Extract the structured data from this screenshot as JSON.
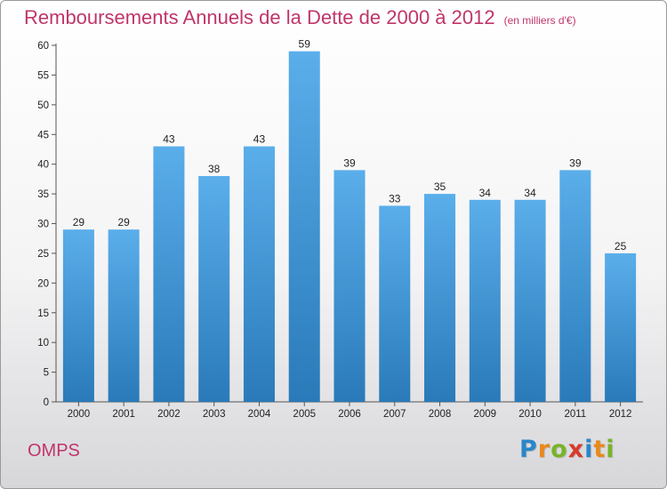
{
  "header": {
    "title": "Remboursements Annuels de la Dette de 2000 à 2012",
    "subtitle": "(en milliers d'€)"
  },
  "footer": {
    "commune": "OMPS",
    "logo": [
      "P",
      "r",
      "o",
      "x",
      "i",
      "t",
      "i"
    ]
  },
  "colors": {
    "title": "#c0356a",
    "bar_top": "#5aaeea",
    "bar_bottom": "#2a7ab9",
    "logo": [
      "#2a86c8",
      "#e8891c",
      "#79b32a",
      "#d83a2a",
      "#2a86c8",
      "#e8891c",
      "#79b32a"
    ]
  },
  "chart_data": {
    "type": "bar",
    "categories": [
      "2000",
      "2001",
      "2002",
      "2003",
      "2004",
      "2005",
      "2006",
      "2007",
      "2008",
      "2009",
      "2010",
      "2011",
      "2012"
    ],
    "values": [
      29,
      29,
      43,
      38,
      43,
      59,
      39,
      33,
      35,
      34,
      34,
      39,
      25
    ],
    "ylim": [
      0,
      60
    ],
    "yticks": [
      0,
      5,
      10,
      15,
      20,
      25,
      30,
      35,
      40,
      45,
      50,
      55,
      60
    ],
    "grid": false
  }
}
